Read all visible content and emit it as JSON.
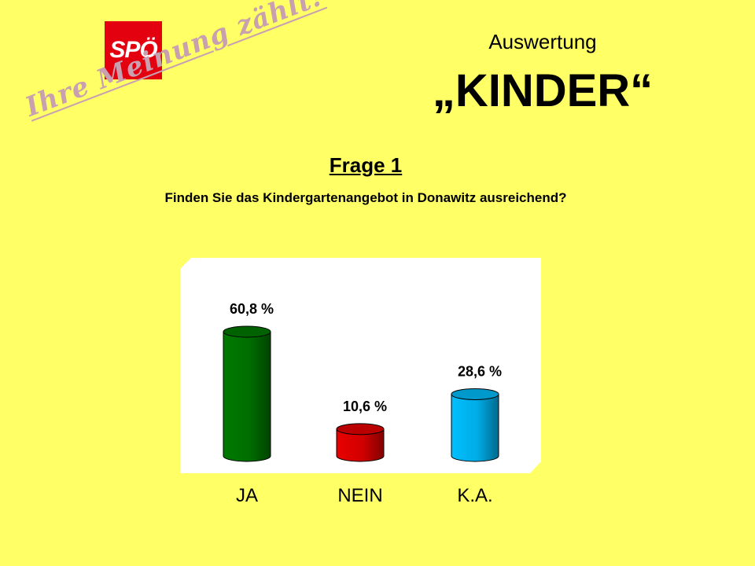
{
  "header": {
    "logo_text": "SPÖ",
    "slogan": "Ihre Meinung zählt!",
    "subtitle": "Auswertung",
    "title": "„KINDER“"
  },
  "question": {
    "number": "Frage 1",
    "text": "Finden Sie das Kindergartenangebot in Donawitz ausreichend?"
  },
  "chart_data": {
    "type": "bar",
    "categories": [
      "JA",
      "NEIN",
      "K.A."
    ],
    "values": [
      60.8,
      10.6,
      28.6
    ],
    "data_labels": [
      "60,8 %",
      "10,6 %",
      "28,6 %"
    ],
    "colors": [
      "#007A00",
      "#E80000",
      "#00BFFF"
    ],
    "ylim": [
      0,
      70
    ],
    "grid": false,
    "legend": "none"
  }
}
